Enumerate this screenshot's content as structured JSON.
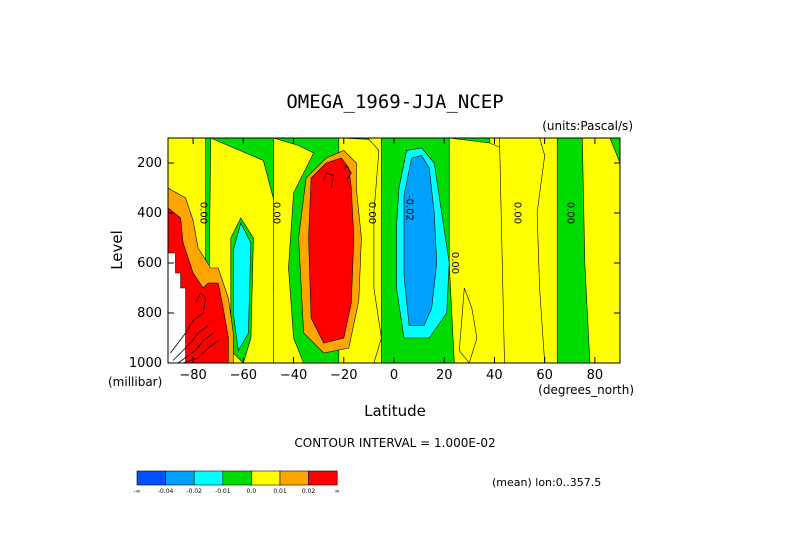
{
  "chart_data": {
    "type": "heatmap",
    "title": "OMEGA_1969-JJA_NCEP",
    "units_label": "(units:Pascal/s)",
    "xlabel": "Latitude",
    "ylabel": "Level",
    "x_unit_label": "(degrees_north)",
    "y_unit_label": "(millibar)",
    "xlim": [
      -90,
      90
    ],
    "ylim": [
      1000,
      100
    ],
    "x_ticks": [
      -80,
      -60,
      -40,
      -20,
      0,
      20,
      40,
      60,
      80
    ],
    "y_ticks": [
      200,
      400,
      600,
      800,
      1000
    ],
    "contour_interval_label": "CONTOUR INTERVAL = 1.000E-02",
    "mean_note": "(mean) lon:0..357.5",
    "contour_labels": [
      {
        "text": "0.00",
        "lat": -77,
        "lev": 400
      },
      {
        "text": "0.00",
        "lat": -48,
        "lev": 400
      },
      {
        "text": "0.00",
        "lat": -10,
        "lev": 400
      },
      {
        "text": "-0.02",
        "lat": 5,
        "lev": 380
      },
      {
        "text": "0.00",
        "lat": 23,
        "lev": 600
      },
      {
        "text": "0.00",
        "lat": 48,
        "lev": 400
      },
      {
        "text": "0.00",
        "lat": 69,
        "lev": 400
      }
    ],
    "regions": [
      {
        "color": "#00dc00",
        "pts": [
          [
            -75,
            100
          ],
          [
            -10,
            100
          ],
          [
            -10,
            1000
          ],
          [
            -75,
            1000
          ]
        ]
      },
      {
        "color": "#00dc00",
        "pts": [
          [
            -5,
            100
          ],
          [
            38,
            100
          ],
          [
            38,
            1000
          ],
          [
            -5,
            1000
          ]
        ]
      },
      {
        "color": "#00dc00",
        "pts": [
          [
            65,
            100
          ],
          [
            90,
            100
          ],
          [
            90,
            1000
          ],
          [
            65,
            1000
          ]
        ]
      },
      {
        "color": "#ffff00",
        "pts": [
          [
            -73,
            100
          ],
          [
            -52,
            190
          ],
          [
            -46,
            420
          ],
          [
            -48,
            700
          ],
          [
            -46,
            950
          ],
          [
            -40,
            1000
          ],
          [
            -74,
            1000
          ]
        ]
      },
      {
        "color": "#ffff00",
        "pts": [
          [
            -48,
            100
          ],
          [
            -38,
            130
          ],
          [
            -32,
            160
          ],
          [
            -40,
            320
          ],
          [
            -42,
            620
          ],
          [
            -40,
            900
          ],
          [
            -36,
            1000
          ],
          [
            -48,
            1000
          ]
        ]
      },
      {
        "color": "#ffff00",
        "pts": [
          [
            -22,
            100
          ],
          [
            -10,
            105
          ],
          [
            -6,
            150
          ],
          [
            -8,
            400
          ],
          [
            -8,
            700
          ],
          [
            -5,
            900
          ],
          [
            -8,
            1000
          ],
          [
            -22,
            1000
          ]
        ]
      },
      {
        "color": "#ffff00",
        "pts": [
          [
            22,
            100
          ],
          [
            38,
            120
          ],
          [
            48,
            160
          ],
          [
            50,
            400
          ],
          [
            48,
            700
          ],
          [
            46,
            1000
          ],
          [
            24,
            1000
          ],
          [
            22,
            600
          ]
        ]
      },
      {
        "color": "#ffff00",
        "pts": [
          [
            42,
            100
          ],
          [
            58,
            100
          ],
          [
            60,
            170
          ],
          [
            57,
            400
          ],
          [
            58,
            700
          ],
          [
            60,
            1000
          ],
          [
            44,
            1000
          ]
        ]
      },
      {
        "color": "#ffff00",
        "pts": [
          [
            75,
            100
          ],
          [
            86,
            100
          ],
          [
            90,
            200
          ],
          [
            90,
            1000
          ],
          [
            78,
            1000
          ],
          [
            76,
            600
          ]
        ]
      },
      {
        "color": "#00dc00",
        "pts": [
          [
            -65,
            500
          ],
          [
            -61,
            420
          ],
          [
            -56,
            500
          ],
          [
            -57,
            900
          ],
          [
            -60,
            1000
          ],
          [
            -65,
            950
          ]
        ]
      },
      {
        "color": "#00ffff",
        "pts": [
          [
            -64,
            550
          ],
          [
            -61,
            440
          ],
          [
            -57,
            520
          ],
          [
            -58,
            880
          ],
          [
            -62,
            950
          ],
          [
            -64,
            800
          ]
        ]
      },
      {
        "color": "#ffff00",
        "pts": [
          [
            28,
            700
          ],
          [
            31,
            780
          ],
          [
            33,
            900
          ],
          [
            30,
            1000
          ],
          [
            26,
            950
          ]
        ]
      },
      {
        "color": "#ffa500",
        "pts": [
          [
            -90,
            300
          ],
          [
            -83,
            340
          ],
          [
            -80,
            430
          ],
          [
            -78,
            540
          ],
          [
            -73,
            620
          ],
          [
            -70,
            620
          ],
          [
            -66,
            740
          ],
          [
            -64,
            880
          ],
          [
            -64,
            1000
          ],
          [
            -90,
            1000
          ]
        ]
      },
      {
        "color": "#ff0000",
        "pts": [
          [
            -90,
            380
          ],
          [
            -85,
            420
          ],
          [
            -84,
            520
          ],
          [
            -80,
            640
          ],
          [
            -76,
            700
          ],
          [
            -74,
            680
          ],
          [
            -70,
            680
          ],
          [
            -68,
            780
          ],
          [
            -66,
            900
          ],
          [
            -66,
            1000
          ],
          [
            -90,
            1000
          ]
        ]
      },
      {
        "color": "#ffffff",
        "pts": [
          [
            -90,
            560
          ],
          [
            -87,
            560
          ],
          [
            -87,
            640
          ],
          [
            -85,
            640
          ],
          [
            -85,
            700
          ],
          [
            -83,
            700
          ],
          [
            -83,
            1000
          ],
          [
            -90,
            1000
          ]
        ]
      },
      {
        "color": "#ffa500",
        "pts": [
          [
            -35,
            260
          ],
          [
            -27,
            180
          ],
          [
            -20,
            150
          ],
          [
            -15,
            200
          ],
          [
            -15,
            300
          ],
          [
            -13,
            500
          ],
          [
            -14,
            750
          ],
          [
            -18,
            940
          ],
          [
            -28,
            960
          ],
          [
            -36,
            880
          ],
          [
            -38,
            500
          ]
        ]
      },
      {
        "color": "#ff0000",
        "pts": [
          [
            -33,
            260
          ],
          [
            -27,
            200
          ],
          [
            -21,
            180
          ],
          [
            -18,
            220
          ],
          [
            -17,
            300
          ],
          [
            -16,
            500
          ],
          [
            -17,
            760
          ],
          [
            -20,
            900
          ],
          [
            -28,
            920
          ],
          [
            -33,
            820
          ],
          [
            -34,
            500
          ]
        ]
      },
      {
        "color": "#00ffff",
        "pts": [
          [
            2,
            300
          ],
          [
            5,
            150
          ],
          [
            11,
            140
          ],
          [
            16,
            200
          ],
          [
            19,
            400
          ],
          [
            22,
            600
          ],
          [
            21,
            800
          ],
          [
            14,
            900
          ],
          [
            4,
            900
          ],
          [
            1,
            700
          ],
          [
            1,
            450
          ]
        ]
      },
      {
        "color": "#00a0ff",
        "pts": [
          [
            4,
            330
          ],
          [
            7,
            180
          ],
          [
            11,
            170
          ],
          [
            14,
            220
          ],
          [
            16,
            400
          ],
          [
            17,
            600
          ],
          [
            15,
            780
          ],
          [
            12,
            850
          ],
          [
            6,
            850
          ],
          [
            4,
            650
          ]
        ]
      }
    ],
    "contour_lines": [
      {
        "pts": [
          [
            -89,
            960
          ],
          [
            -83,
            880
          ],
          [
            -80,
            830
          ],
          [
            -76,
            800
          ]
        ]
      },
      {
        "pts": [
          [
            -88,
            990
          ],
          [
            -81,
            920
          ],
          [
            -78,
            880
          ],
          [
            -74,
            850
          ]
        ]
      },
      {
        "pts": [
          [
            -86,
            1000
          ],
          [
            -79,
            950
          ],
          [
            -76,
            910
          ],
          [
            -72,
            880
          ]
        ]
      },
      {
        "pts": [
          [
            -84,
            1000
          ],
          [
            -78,
            980
          ],
          [
            -74,
            940
          ],
          [
            -70,
            910
          ]
        ]
      },
      {
        "pts": [
          [
            -79,
            760
          ],
          [
            -77,
            720
          ],
          [
            -75,
            740
          ],
          [
            -76,
            800
          ]
        ]
      },
      {
        "pts": [
          [
            -28,
            270
          ],
          [
            -27,
            240
          ],
          [
            -24,
            250
          ],
          [
            -25,
            300
          ]
        ]
      },
      {
        "pts": [
          [
            -20,
            230
          ],
          [
            -19,
            210
          ],
          [
            -17,
            240
          ],
          [
            -19,
            270
          ]
        ]
      }
    ],
    "colorbar": {
      "colors": [
        "#0050ff",
        "#00a0ff",
        "#00ffff",
        "#00dc00",
        "#ffff00",
        "#ffa500",
        "#ff0000"
      ],
      "labels": [
        "-∞",
        "-0.04",
        "-0.02",
        "-0.01",
        "0.0",
        "0.01",
        "0.02",
        "∞"
      ]
    }
  }
}
